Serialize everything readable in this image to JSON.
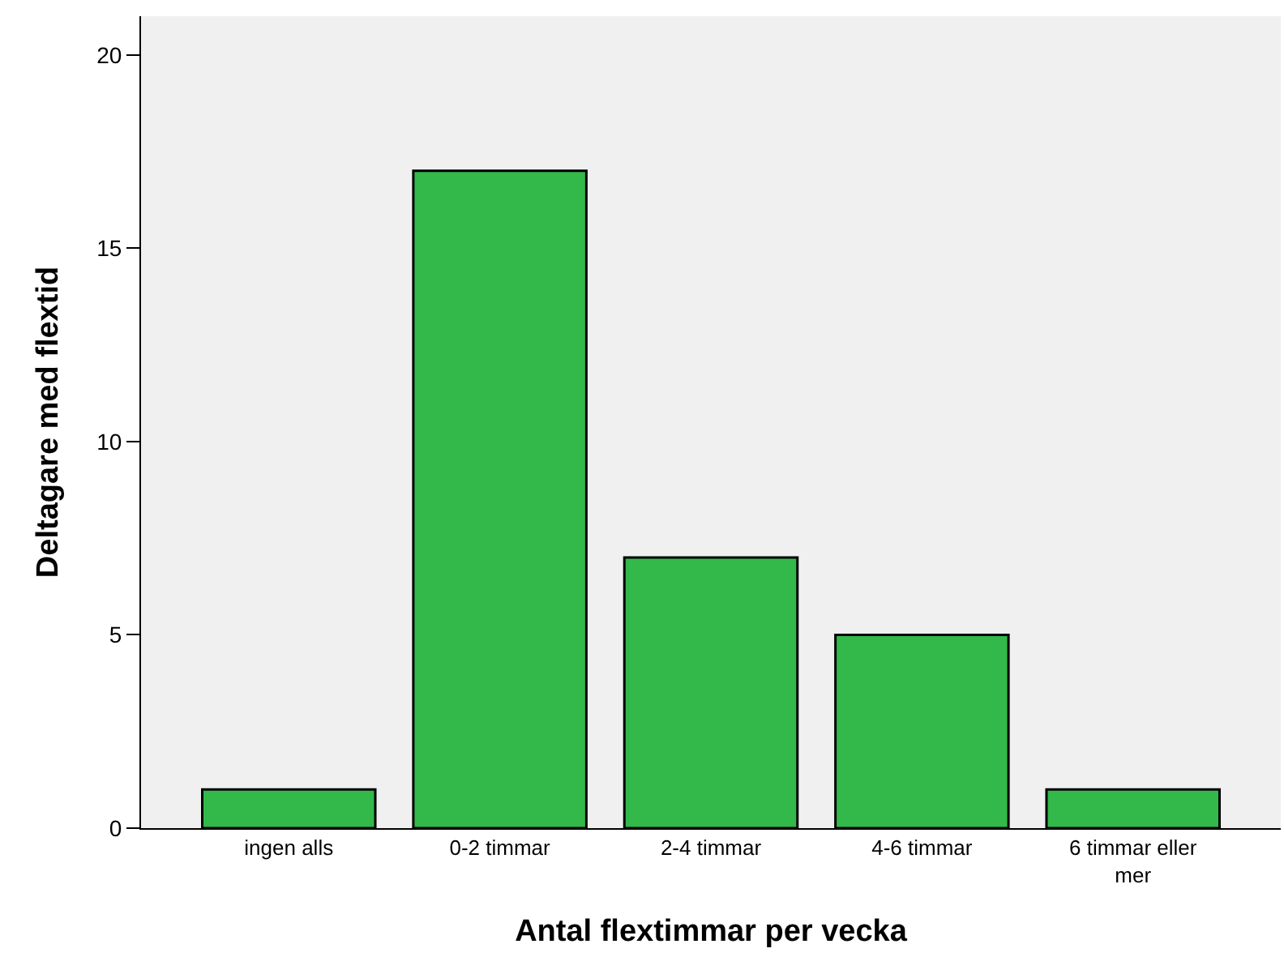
{
  "chart_data": {
    "type": "bar",
    "xlabel": "Antal flextimmar per vecka",
    "ylabel": "Deltagare med flextid",
    "categories": [
      "ingen alls",
      "0-2 timmar",
      "2-4 timmar",
      "4-6 timmar",
      "6 timmar eller mer"
    ],
    "values": [
      1,
      17,
      7,
      5,
      1
    ],
    "color": "#33b84a",
    "ylim": [
      0,
      21
    ],
    "yticks": [
      0,
      5,
      10,
      15,
      20
    ],
    "grid": false
  }
}
